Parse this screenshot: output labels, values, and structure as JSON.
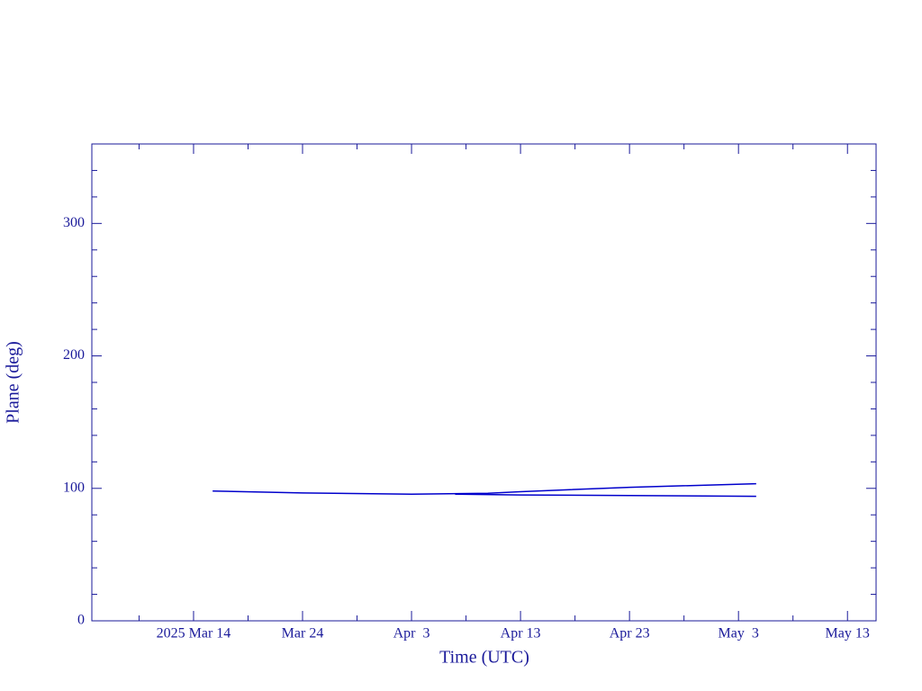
{
  "chart_data": {
    "type": "line",
    "x_label": "Time (UTC)",
    "y_label": "Plane (deg)",
    "xlim": [
      "2025-03-04T16:00",
      "2025-05-15T15:00"
    ],
    "ylim": [
      0,
      360
    ],
    "xticks": [
      {
        "value": "2025-03-14T00:00",
        "label": "2025 Mar 14"
      },
      {
        "value": "2025-03-24T00:00",
        "label": "Mar 24"
      },
      {
        "value": "2025-04-03T00:00",
        "label": "Apr  3"
      },
      {
        "value": "2025-04-13T00:00",
        "label": "Apr 13"
      },
      {
        "value": "2025-04-23T00:00",
        "label": "Apr 23"
      },
      {
        "value": "2025-05-03T00:00",
        "label": "May  3"
      },
      {
        "value": "2025-05-13T00:00",
        "label": "May 13"
      }
    ],
    "xminorticks": [
      "2025-03-09T00:00",
      "2025-03-19T00:00",
      "2025-03-29T00:00",
      "2025-04-08T00:00",
      "2025-04-18T00:00",
      "2025-04-28T00:00",
      "2025-05-08T00:00"
    ],
    "yticks": [
      0,
      100,
      200,
      300
    ],
    "yminorticks": [
      20,
      40,
      60,
      80,
      120,
      140,
      160,
      180,
      220,
      240,
      260,
      280,
      320,
      340
    ],
    "axis_color": "#1a1a9a",
    "series": [
      {
        "color": "#0000cc",
        "x": [
          "2025-03-15T18:00",
          "2025-03-24T00:00",
          "2025-04-03T00:00",
          "2025-04-10T00:00",
          "2025-04-13T00:00",
          "2025-04-23T00:00",
          "2025-05-04T15:00"
        ],
        "values": [
          98,
          96.5,
          95.6,
          96.3,
          97.5,
          100.8,
          103.5
        ]
      },
      {
        "color": "#0000cc",
        "x": [
          "2025-04-07T00:00",
          "2025-04-13T00:00",
          "2025-04-23T00:00",
          "2025-05-04T15:00"
        ],
        "values": [
          95.6,
          95,
          94.6,
          94
        ]
      }
    ]
  }
}
